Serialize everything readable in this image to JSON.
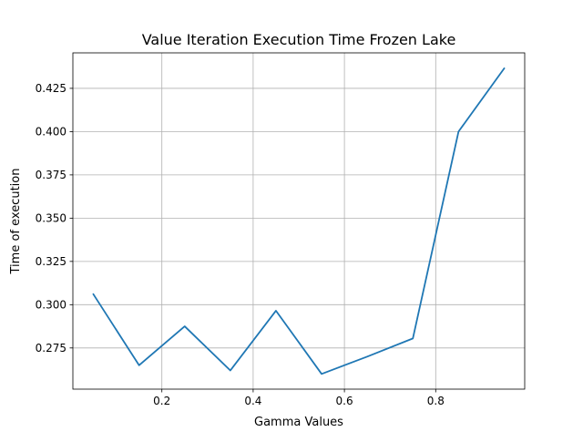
{
  "chart_data": {
    "type": "line",
    "title": "Value Iteration Execution Time Frozen Lake",
    "xlabel": "Gamma Values",
    "ylabel": "Time of execution",
    "xlim": [
      0.005,
      0.995
    ],
    "ylim": [
      0.2512,
      0.4455
    ],
    "xticks": [
      0.2,
      0.4,
      0.6,
      0.8
    ],
    "xtick_labels": [
      "0.2",
      "0.4",
      "0.6",
      "0.8"
    ],
    "yticks": [
      0.275,
      0.3,
      0.325,
      0.35,
      0.375,
      0.4,
      0.425
    ],
    "ytick_labels": [
      "0.275",
      "0.300",
      "0.325",
      "0.350",
      "0.375",
      "0.400",
      "0.425"
    ],
    "grid": true,
    "series": [
      {
        "color": "#1f77b4",
        "x": [
          0.05,
          0.15,
          0.25,
          0.35,
          0.45,
          0.55,
          0.65,
          0.75,
          0.85,
          0.95
        ],
        "y": [
          0.306,
          0.265,
          0.2875,
          0.262,
          0.2965,
          0.26,
          0.27,
          0.2805,
          0.4,
          0.4365
        ]
      }
    ]
  }
}
